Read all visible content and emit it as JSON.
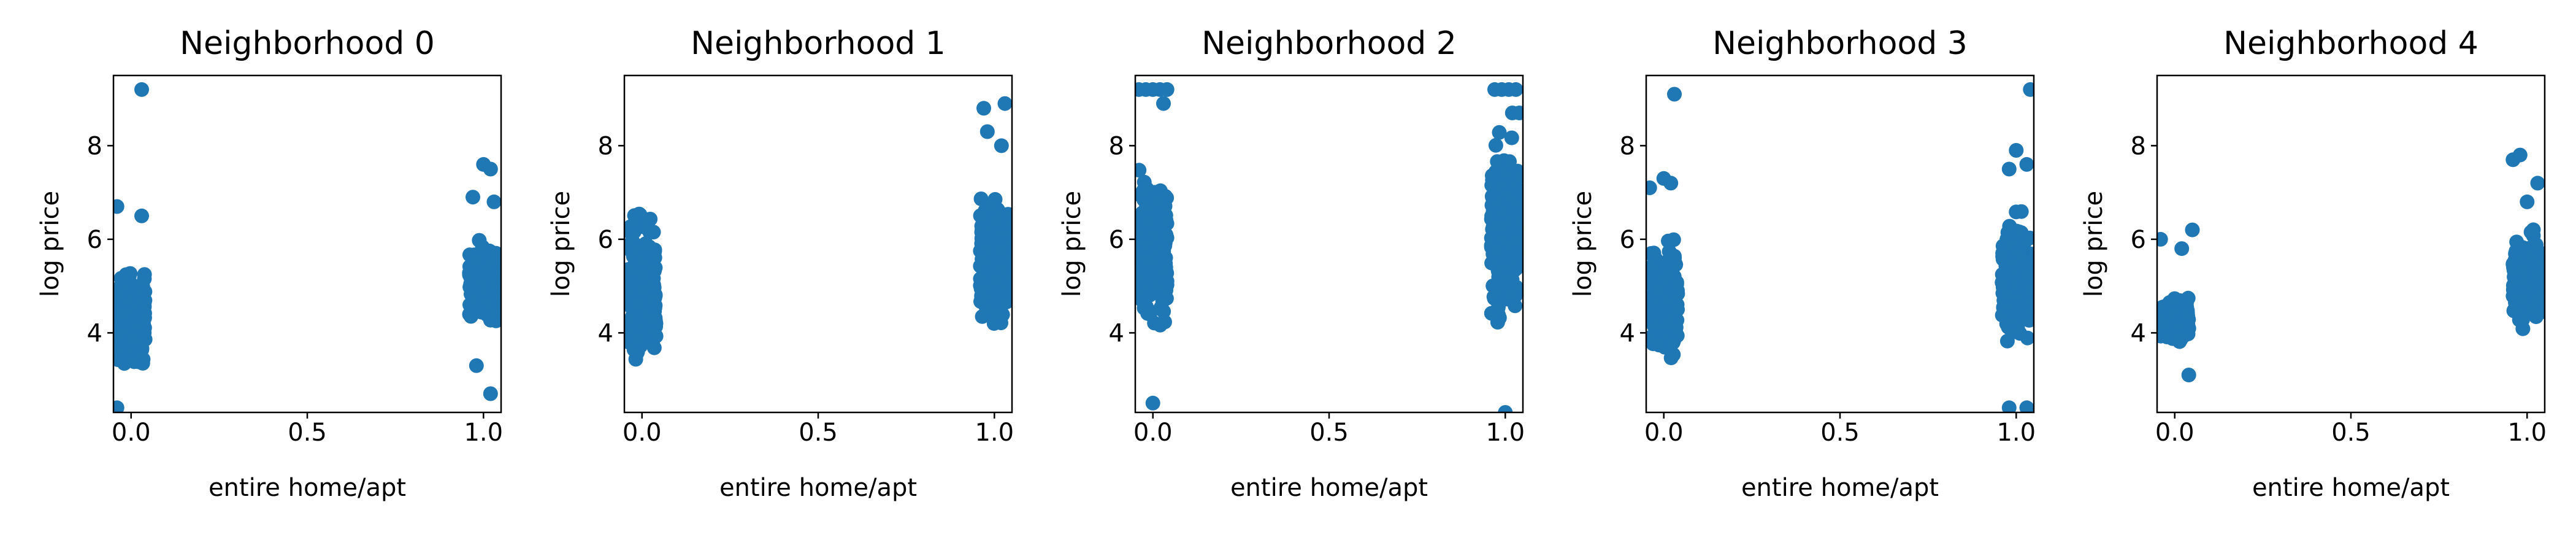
{
  "figure": {
    "marker_color": "#1f77b4"
  },
  "chart_data": [
    {
      "type": "scatter",
      "title": "Neighborhood 0",
      "xlabel": "entire home/apt",
      "ylabel": "log price",
      "xlim": [
        -0.05,
        1.05
      ],
      "ylim": [
        2.3,
        9.5
      ],
      "xticks": [
        0.0,
        0.5,
        1.0
      ],
      "xtick_labels": [
        "0.0",
        "0.5",
        "1.0"
      ],
      "yticks": [
        4,
        6,
        8
      ],
      "ytick_labels": [
        "4",
        "6",
        "8"
      ],
      "grid": false,
      "clusters": [
        {
          "x": 0,
          "y_range": [
            2.8,
            5.8
          ],
          "outliers": [
            [
              0.03,
              9.2
            ],
            [
              0.03,
              6.5
            ],
            [
              -0.04,
              6.7
            ],
            [
              -0.04,
              2.4
            ]
          ]
        },
        {
          "x": 1,
          "y_range": [
            3.9,
            6.3
          ],
          "outliers": [
            [
              1.0,
              7.6
            ],
            [
              1.02,
              7.5
            ],
            [
              0.97,
              6.9
            ],
            [
              1.03,
              6.8
            ],
            [
              0.98,
              3.3
            ],
            [
              1.02,
              2.7
            ]
          ]
        }
      ]
    },
    {
      "type": "scatter",
      "title": "Neighborhood 1",
      "xlabel": "entire home/apt",
      "ylabel": "log price",
      "xlim": [
        -0.05,
        1.05
      ],
      "ylim": [
        2.3,
        9.5
      ],
      "xticks": [
        0.0,
        0.5,
        1.0
      ],
      "xtick_labels": [
        "0.0",
        "0.5",
        "1.0"
      ],
      "yticks": [
        4,
        6,
        8
      ],
      "ytick_labels": [
        "4",
        "6",
        "8"
      ],
      "grid": false,
      "clusters": [
        {
          "x": 0,
          "y_range": [
            2.4,
            7.3
          ],
          "outliers": []
        },
        {
          "x": 1,
          "y_range": [
            3.5,
            7.5
          ],
          "outliers": [
            [
              0.97,
              8.8
            ],
            [
              1.03,
              8.9
            ],
            [
              0.98,
              8.3
            ],
            [
              1.02,
              8.0
            ]
          ]
        }
      ]
    },
    {
      "type": "scatter",
      "title": "Neighborhood 2",
      "xlabel": "entire home/apt",
      "ylabel": "log price",
      "xlim": [
        -0.05,
        1.05
      ],
      "ylim": [
        2.3,
        9.5
      ],
      "xticks": [
        0.0,
        0.5,
        1.0
      ],
      "xtick_labels": [
        "0.0",
        "0.5",
        "1.0"
      ],
      "yticks": [
        4,
        6,
        8
      ],
      "ytick_labels": [
        "4",
        "6",
        "8"
      ],
      "grid": false,
      "clusters": [
        {
          "x": 0,
          "y_range": [
            3.0,
            8.5
          ],
          "outliers": [
            [
              -0.04,
              9.2
            ],
            [
              -0.02,
              9.2
            ],
            [
              0.0,
              9.2
            ],
            [
              0.02,
              9.2
            ],
            [
              0.04,
              9.2
            ],
            [
              0.03,
              8.9
            ],
            [
              0.0,
              2.5
            ]
          ]
        },
        {
          "x": 1,
          "y_range": [
            3.5,
            8.8
          ],
          "outliers": [
            [
              0.97,
              9.2
            ],
            [
              0.99,
              9.2
            ],
            [
              1.01,
              9.2
            ],
            [
              1.03,
              9.2
            ],
            [
              1.02,
              8.7
            ],
            [
              1.04,
              8.7
            ],
            [
              1.0,
              2.3
            ]
          ]
        }
      ]
    },
    {
      "type": "scatter",
      "title": "Neighborhood 3",
      "xlabel": "entire home/apt",
      "ylabel": "log price",
      "xlim": [
        -0.05,
        1.05
      ],
      "ylim": [
        2.3,
        9.5
      ],
      "xticks": [
        0.0,
        0.5,
        1.0
      ],
      "xtick_labels": [
        "0.0",
        "0.5",
        "1.0"
      ],
      "yticks": [
        4,
        6,
        8
      ],
      "ytick_labels": [
        "4",
        "6",
        "8"
      ],
      "grid": false,
      "clusters": [
        {
          "x": 0,
          "y_range": [
            2.8,
            6.6
          ],
          "outliers": [
            [
              0.03,
              9.1
            ],
            [
              -0.04,
              7.1
            ],
            [
              0.0,
              7.3
            ],
            [
              0.02,
              7.2
            ]
          ]
        },
        {
          "x": 1,
          "y_range": [
            3.3,
            7.0
          ],
          "outliers": [
            [
              1.04,
              9.2
            ],
            [
              1.0,
              7.9
            ],
            [
              1.03,
              7.6
            ],
            [
              0.98,
              7.5
            ],
            [
              0.98,
              2.4
            ],
            [
              1.03,
              2.4
            ]
          ]
        }
      ]
    },
    {
      "type": "scatter",
      "title": "Neighborhood 4",
      "xlabel": "entire home/apt",
      "ylabel": "log price",
      "xlim": [
        -0.05,
        1.05
      ],
      "ylim": [
        2.3,
        9.5
      ],
      "xticks": [
        0.0,
        0.5,
        1.0
      ],
      "xtick_labels": [
        "0.0",
        "0.5",
        "1.0"
      ],
      "yticks": [
        4,
        6,
        8
      ],
      "ytick_labels": [
        "4",
        "6",
        "8"
      ],
      "grid": false,
      "clusters": [
        {
          "x": 0,
          "y_range": [
            3.6,
            5.0
          ],
          "outliers": [
            [
              -0.04,
              6.0
            ],
            [
              0.05,
              6.2
            ],
            [
              0.02,
              5.8
            ],
            [
              0.04,
              3.1
            ]
          ]
        },
        {
          "x": 1,
          "y_range": [
            3.7,
            6.5
          ],
          "outliers": [
            [
              0.98,
              7.8
            ],
            [
              0.96,
              7.7
            ],
            [
              1.03,
              7.2
            ],
            [
              1.0,
              6.8
            ]
          ]
        }
      ]
    }
  ]
}
